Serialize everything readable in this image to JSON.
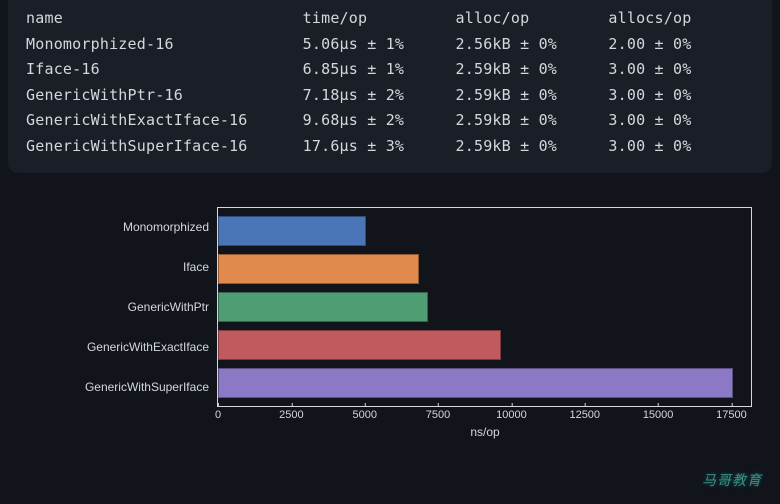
{
  "table": {
    "headers": [
      "name",
      "time/op",
      "alloc/op",
      "allocs/op"
    ],
    "rows": [
      [
        "Monomorphized-16",
        "5.06µs ± 1%",
        "2.56kB ± 0%",
        "2.00 ± 0%"
      ],
      [
        "Iface-16",
        "6.85µs ± 1%",
        "2.59kB ± 0%",
        "3.00 ± 0%"
      ],
      [
        "GenericWithPtr-16",
        "7.18µs ± 2%",
        "2.59kB ± 0%",
        "3.00 ± 0%"
      ],
      [
        "GenericWithExactIface-16",
        "9.68µs ± 2%",
        "2.59kB ± 0%",
        "3.00 ± 0%"
      ],
      [
        "GenericWithSuperIface-16",
        "17.6µs ± 3%",
        "2.59kB ± 0%",
        "3.00 ± 0%"
      ]
    ]
  },
  "chart": {
    "type": "bar-horizontal",
    "xlabel": "ns/op",
    "xmin": 0,
    "xmax": 18200,
    "xticks": [
      0,
      2500,
      5000,
      7500,
      10000,
      12500,
      15000,
      17500
    ],
    "categories": [
      "Monomorphized",
      "Iface",
      "GenericWithPtr",
      "GenericWithExactIface",
      "GenericWithSuperIface"
    ],
    "values": [
      5060,
      6850,
      7180,
      9680,
      17600
    ],
    "bar_colors": [
      "#4a76b7",
      "#e08b4d",
      "#4f9d72",
      "#c15a5f",
      "#8c79c6"
    ],
    "background": "#11151b",
    "axis_color": "#d4d8dc",
    "label_fontsize": 12
  },
  "watermark": "马哥教育"
}
